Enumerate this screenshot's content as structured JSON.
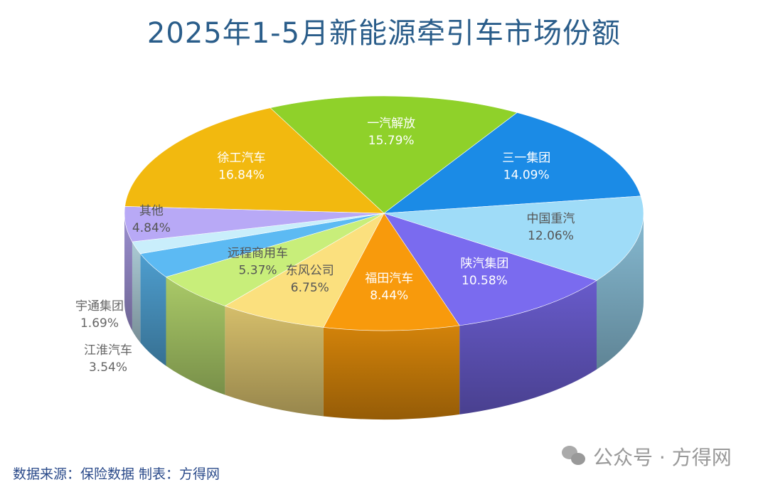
{
  "chart_data": {
    "type": "pie",
    "title": "2025年1-5月新能源牵引车市场份额",
    "unit": "%",
    "slices": [
      {
        "label": "一汽解放",
        "value": 15.79,
        "display": "15.79%",
        "color": "#8fd12a"
      },
      {
        "label": "三一集团",
        "value": 14.09,
        "display": "14.09%",
        "color": "#1b8be6"
      },
      {
        "label": "中国重汽",
        "value": 12.06,
        "display": "12.06%",
        "color": "#9fdcf8"
      },
      {
        "label": "陕汽集团",
        "value": 10.58,
        "display": "10.58%",
        "color": "#7a6bef"
      },
      {
        "label": "福田汽车",
        "value": 8.44,
        "display": "8.44%",
        "color": "#f89a0c"
      },
      {
        "label": "东风公司",
        "value": 6.75,
        "display": "6.75%",
        "color": "#fbe07e"
      },
      {
        "label": "远程商用车",
        "value": 5.37,
        "display": "5.37%",
        "color": "#c8ee7a"
      },
      {
        "label": "江淮汽车",
        "value": 3.54,
        "display": "3.54%",
        "color": "#5cbaf3"
      },
      {
        "label": "宇通集团",
        "value": 1.69,
        "display": "1.69%",
        "color": "#c9eefb"
      },
      {
        "label": "其他",
        "value": 4.84,
        "display": "4.84%",
        "color": "#b8a9f6"
      },
      {
        "label": "徐工汽车",
        "value": 16.84,
        "display": "16.84%",
        "color": "#f2b90f"
      }
    ]
  },
  "footer": {
    "source": "数据来源：保险数据   制表：方得网",
    "watermark": "公众号 · 方得网"
  }
}
